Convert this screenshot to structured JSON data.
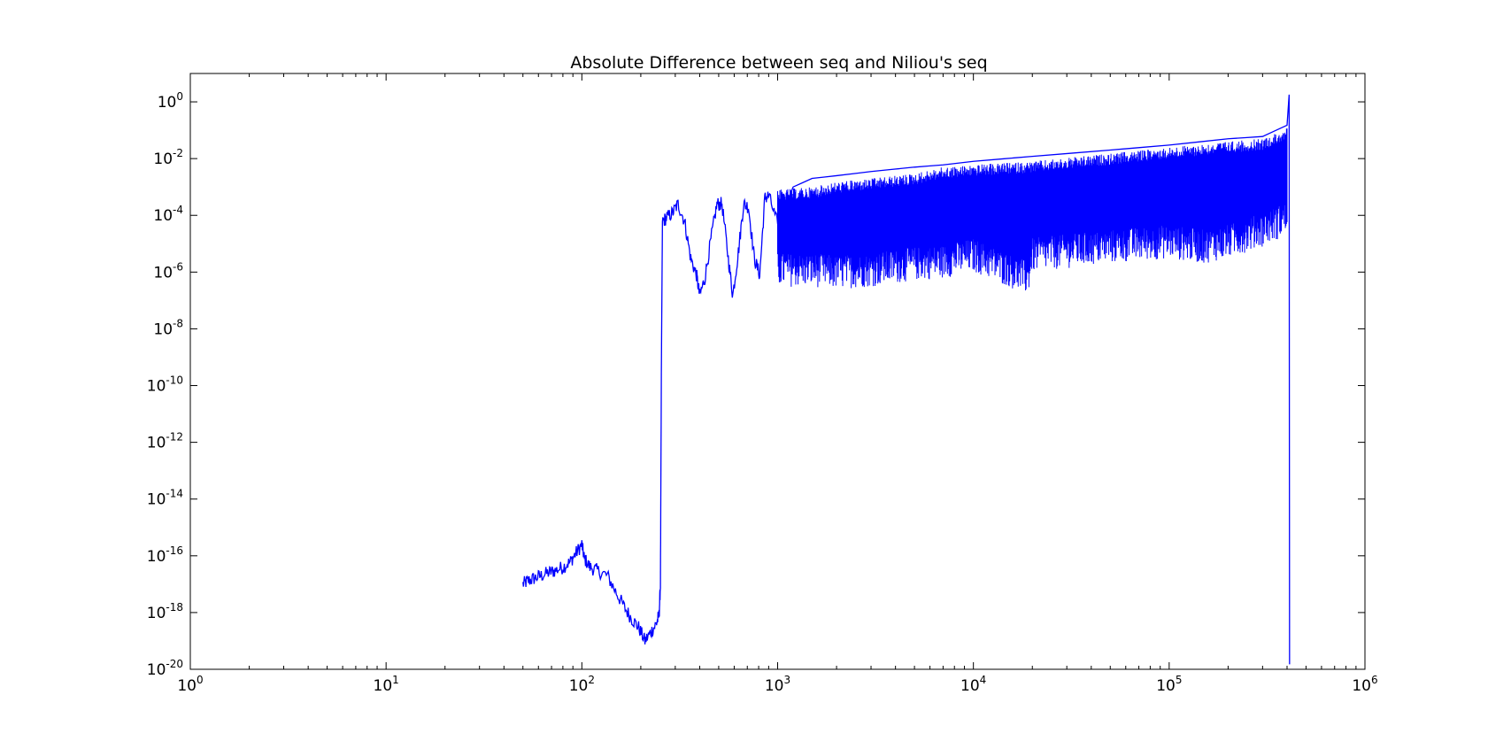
{
  "chart_data": {
    "type": "line",
    "title": "Absolute Difference between seq and Niliou's seq",
    "xlabel": "",
    "ylabel": "",
    "xscale": "log",
    "yscale": "log",
    "xlim": [
      1,
      1000000
    ],
    "ylim": [
      1e-20,
      10
    ],
    "grid": false,
    "x_ticks": [
      {
        "base": "10",
        "exp": "0",
        "value": 1
      },
      {
        "base": "10",
        "exp": "1",
        "value": 10
      },
      {
        "base": "10",
        "exp": "2",
        "value": 100
      },
      {
        "base": "10",
        "exp": "3",
        "value": 1000
      },
      {
        "base": "10",
        "exp": "4",
        "value": 10000
      },
      {
        "base": "10",
        "exp": "5",
        "value": 100000
      },
      {
        "base": "10",
        "exp": "6",
        "value": 1000000
      }
    ],
    "y_ticks": [
      {
        "base": "10",
        "exp": "0",
        "value": 1
      },
      {
        "base": "10",
        "exp": "-2",
        "value": 0.01
      },
      {
        "base": "10",
        "exp": "-4",
        "value": 0.0001
      },
      {
        "base": "10",
        "exp": "-6",
        "value": 1e-06
      },
      {
        "base": "10",
        "exp": "-8",
        "value": 1e-08
      },
      {
        "base": "10",
        "exp": "-10",
        "value": 1e-10
      },
      {
        "base": "10",
        "exp": "-12",
        "value": 1e-12
      },
      {
        "base": "10",
        "exp": "-14",
        "value": 1e-14
      },
      {
        "base": "10",
        "exp": "-16",
        "value": 1e-16
      },
      {
        "base": "10",
        "exp": "-18",
        "value": 1e-18
      },
      {
        "base": "10",
        "exp": "-20",
        "value": 1e-20
      }
    ],
    "series": [
      {
        "color": "#0000ff",
        "points": [
          [
            50,
            1e-17
          ],
          [
            53,
            1.3e-17
          ],
          [
            57,
            1.6e-17
          ],
          [
            62,
            2e-17
          ],
          [
            68,
            2.6e-17
          ],
          [
            73,
            3e-17
          ],
          [
            80,
            4e-17
          ],
          [
            87,
            6e-17
          ],
          [
            93,
            1.2e-16
          ],
          [
            100,
            2.5e-16
          ],
          [
            103,
            8e-17
          ],
          [
            110,
            4e-17
          ],
          [
            120,
            3e-17
          ],
          [
            135,
            2e-17
          ],
          [
            150,
            5e-18
          ],
          [
            165,
            1.5e-18
          ],
          [
            180,
            6e-19
          ],
          [
            195,
            3e-19
          ],
          [
            210,
            1e-19
          ],
          [
            225,
            2e-19
          ],
          [
            240,
            4e-19
          ],
          [
            248,
            8e-19
          ],
          [
            252,
            1e-17
          ],
          [
            255,
            1e-09
          ],
          [
            258,
            6e-05
          ],
          [
            270,
            8e-05
          ],
          [
            290,
            0.00012
          ],
          [
            310,
            0.00025
          ],
          [
            335,
            6e-05
          ],
          [
            360,
            3e-06
          ],
          [
            385,
            8e-07
          ],
          [
            400,
            1.5e-07
          ],
          [
            425,
            6e-07
          ],
          [
            460,
            2e-05
          ],
          [
            490,
            0.00025
          ],
          [
            520,
            0.00025
          ],
          [
            560,
            3e-06
          ],
          [
            590,
            1.5e-07
          ],
          [
            630,
            5e-06
          ],
          [
            670,
            0.00025
          ],
          [
            710,
            0.0002
          ],
          [
            760,
            3e-06
          ],
          [
            810,
            8e-07
          ],
          [
            860,
            0.0004
          ],
          [
            900,
            0.0005
          ],
          [
            1000,
            5e-05
          ],
          [
            1200,
            0.001
          ],
          [
            1500,
            0.002
          ],
          [
            2000,
            0.0025
          ],
          [
            3000,
            0.0035
          ],
          [
            5000,
            0.005
          ],
          [
            7000,
            0.006
          ],
          [
            10000,
            0.008
          ],
          [
            20000,
            0.012
          ],
          [
            50000,
            0.02
          ],
          [
            100000,
            0.03
          ],
          [
            200000,
            0.05
          ],
          [
            300000,
            0.06
          ],
          [
            400000,
            0.15
          ],
          [
            410000,
            1.8
          ],
          [
            412000,
            1.5e-20
          ]
        ],
        "band_low": [
          [
            1000,
            3e-07
          ],
          [
            1500,
            3e-07
          ],
          [
            2000,
            2.5e-07
          ],
          [
            3000,
            3e-07
          ],
          [
            5000,
            5e-07
          ],
          [
            7000,
            6e-07
          ],
          [
            10000,
            1e-06
          ],
          [
            19000,
            1.5e-07
          ],
          [
            20000,
            1e-06
          ],
          [
            50000,
            2e-06
          ],
          [
            100000,
            3e-06
          ],
          [
            150000,
            2e-06
          ],
          [
            200000,
            3e-06
          ],
          [
            300000,
            8e-06
          ],
          [
            400000,
            2e-05
          ]
        ],
        "band_high": [
          [
            1000,
            0.0008
          ],
          [
            1500,
            0.001
          ],
          [
            2000,
            0.0015
          ],
          [
            3000,
            0.002
          ],
          [
            5000,
            0.003
          ],
          [
            7000,
            0.005
          ],
          [
            10000,
            0.006
          ],
          [
            20000,
            0.008
          ],
          [
            50000,
            0.015
          ],
          [
            100000,
            0.025
          ],
          [
            200000,
            0.04
          ],
          [
            300000,
            0.05
          ],
          [
            400000,
            0.12
          ]
        ]
      }
    ]
  }
}
